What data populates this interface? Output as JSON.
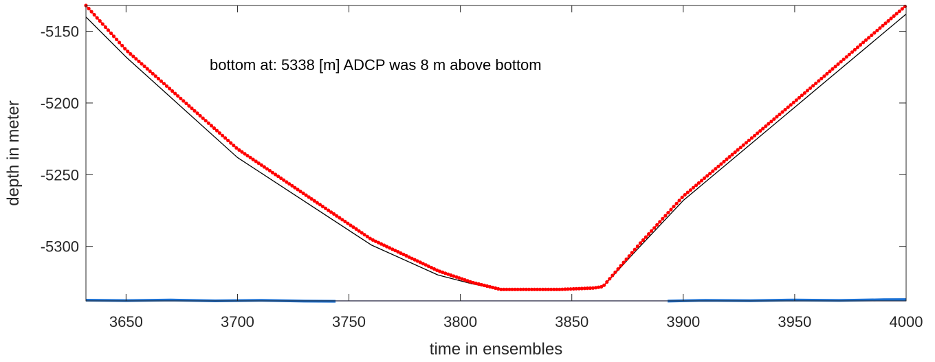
{
  "chart_data": {
    "type": "line",
    "title": "",
    "xlabel": "time in ensembles",
    "ylabel": "depth in meter",
    "xlim": [
      3632,
      4000
    ],
    "ylim": [
      -5338,
      -5132
    ],
    "xticks": [
      3650,
      3700,
      3750,
      3800,
      3850,
      3900,
      3950,
      4000
    ],
    "xtick_labels": [
      "3650",
      "3700",
      "3750",
      "3800",
      "3850",
      "3900",
      "3950",
      "4000"
    ],
    "yticks": [
      -5150,
      -5200,
      -5250,
      -5300
    ],
    "ytick_labels": [
      "-5150",
      "-5200",
      "-5250",
      "-5300"
    ],
    "grid": false,
    "legend": "none",
    "annotation": "bottom at: 5338 [m]   ADCP was 8 m above bottom",
    "series": [
      {
        "role": "red-markers",
        "color": "#ff0000",
        "style": "dots",
        "x": [
          3632,
          3650,
          3700,
          3760,
          3790,
          3805,
          3818,
          3830,
          3845,
          3860,
          3864,
          3880,
          3900,
          3950,
          4000
        ],
        "y": [
          -5132,
          -5163,
          -5232,
          -5295,
          -5317,
          -5325,
          -5330,
          -5330,
          -5330,
          -5329,
          -5328,
          -5299,
          -5265,
          -5199,
          -5132
        ]
      },
      {
        "role": "black-line",
        "color": "#000000",
        "style": "line",
        "x": [
          3632,
          3650,
          3700,
          3760,
          3790,
          3805,
          3818,
          3830,
          3845,
          3860,
          3864,
          3880,
          3900,
          3950,
          4000
        ],
        "y": [
          -5140,
          -5168,
          -5238,
          -5299,
          -5320,
          -5326,
          -5330,
          -5330,
          -5330,
          -5329,
          -5328,
          -5301,
          -5268,
          -5203,
          -5138
        ]
      },
      {
        "role": "blue-bottom-left",
        "color": "#1a6fd1",
        "style": "thick-line",
        "x": [
          3632,
          3650,
          3670,
          3690,
          3710,
          3730,
          3744
        ],
        "y": [
          -5337.5,
          -5337.8,
          -5337.4,
          -5338,
          -5337.6,
          -5338.2,
          -5338.3
        ]
      },
      {
        "role": "blue-bottom-right",
        "color": "#1a6fd1",
        "style": "thick-line",
        "x": [
          3893,
          3910,
          3930,
          3950,
          3970,
          3990,
          4000
        ],
        "y": [
          -5338.2,
          -5337.6,
          -5337.9,
          -5337.4,
          -5337.7,
          -5337.2,
          -5337.1
        ]
      },
      {
        "role": "navy-bottom",
        "color": "#00008b",
        "style": "line",
        "x": [
          3632,
          4000
        ],
        "y": [
          -5338,
          -5338
        ]
      }
    ]
  }
}
